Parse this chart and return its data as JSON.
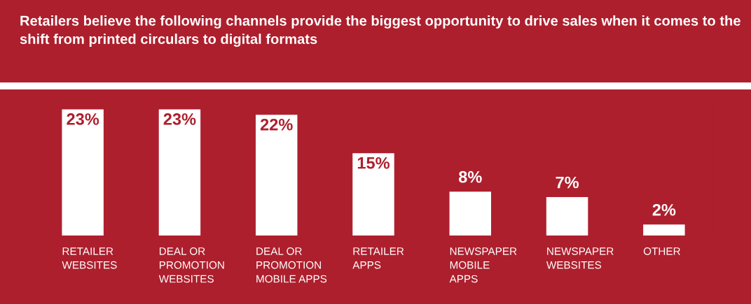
{
  "chart_data": {
    "type": "bar",
    "title": "Retailers believe the following channels provide the biggest opportunity to drive sales when it comes to the shift from printed circulars to digital formats",
    "categories": [
      "RETAILER\nWEBSITES",
      "DEAL OR\nPROMOTION\nWEBSITES",
      "DEAL OR\nPROMOTION\nMOBILE APPS",
      "RETAILER\nAPPS",
      "NEWSPAPER\nMOBILE\nAPPS",
      "NEWSPAPER\nWEBSITES",
      "OTHER"
    ],
    "values": [
      23,
      23,
      22,
      15,
      8,
      7,
      2
    ],
    "value_labels": [
      "23%",
      "23%",
      "22%",
      "15%",
      "8%",
      "7%",
      "2%"
    ],
    "color": "#ffffff",
    "grid": false,
    "legend": false
  }
}
